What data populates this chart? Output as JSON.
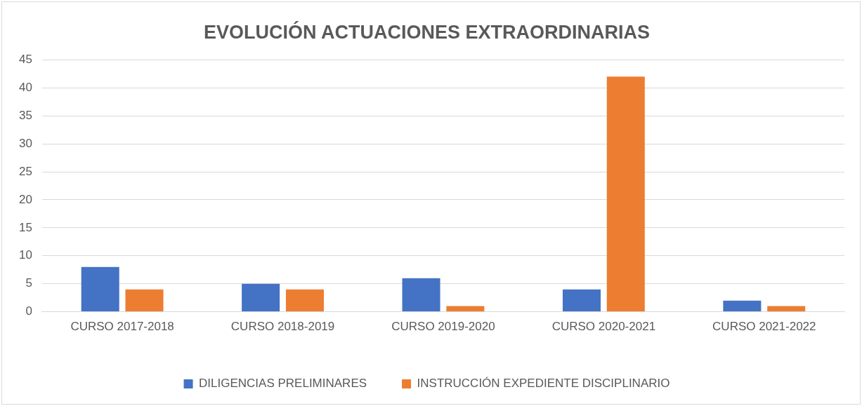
{
  "chart_data": {
    "type": "bar",
    "title": "EVOLUCIÓN ACTUACIONES EXTRAORDINARIAS",
    "categories": [
      "CURSO 2017-2018",
      "CURSO 2018-2019",
      "CURSO 2019-2020",
      "CURSO 2020-2021",
      "CURSO 2021-2022"
    ],
    "series": [
      {
        "name": "DILIGENCIAS PRELIMINARES",
        "color": "#4472c4",
        "values": [
          8,
          5,
          6,
          4,
          2
        ]
      },
      {
        "name": "INSTRUCCIÓN EXPEDIENTE DISCIPLINARIO",
        "color": "#ed7d31",
        "values": [
          4,
          4,
          1,
          42,
          1
        ]
      }
    ],
    "ylim": [
      0,
      45
    ],
    "yticks": [
      0,
      5,
      10,
      15,
      20,
      25,
      30,
      35,
      40,
      45
    ],
    "grid": "y",
    "legend": "bottom"
  }
}
